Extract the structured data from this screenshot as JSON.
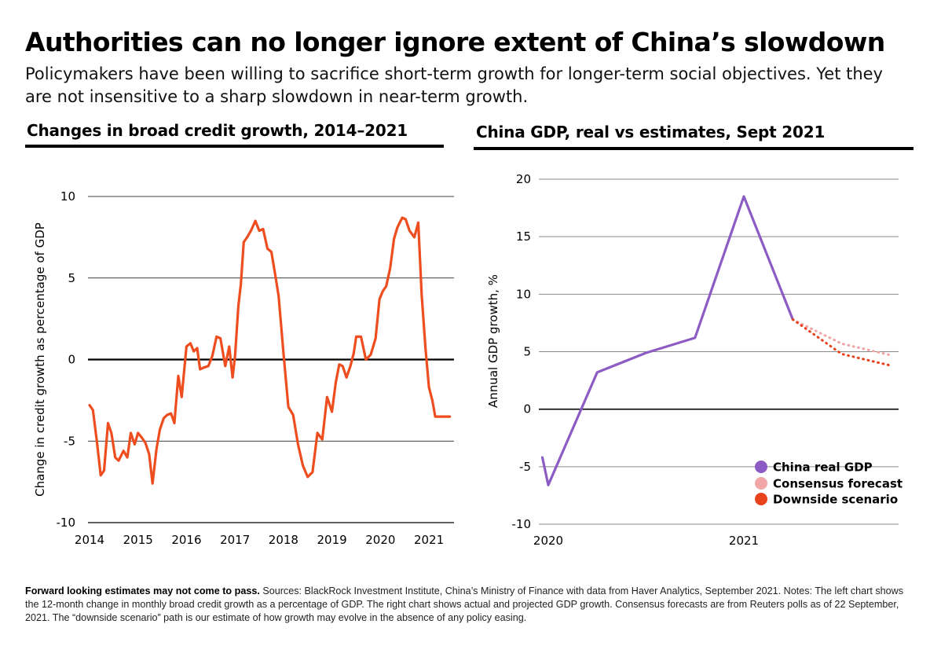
{
  "title": "Authorities can no longer ignore extent of China’s slowdown",
  "subtitle": "Policymakers have been willing to sacrifice short-term growth for longer-term social objectives. Yet they are not insensitive to a sharp slowdown in near-term growth.",
  "left_panel_title": "Changes in broad credit growth, 2014–2021",
  "right_panel_title": "China GDP, real vs estimates, Sept 2021",
  "footer": {
    "lead": "Forward looking estimates may not come to pass.",
    "text": " Sources: BlackRock Investment Institute, China’s Ministry of Finance with data from Haver Analytics, September 2021. Notes: The left chart shows the 12-month change in monthly broad credit growth as a percentage of GDP. The right chart shows actual and projected GDP growth. Consensus forecasts are from Reuters polls as of 22 September, 2021. The “downside scenario” path is our estimate of how growth may evolve in the absence of any policy easing."
  },
  "chart_data": [
    {
      "type": "line",
      "title": "Changes in broad credit growth, 2014–2021",
      "ylabel": "Change in credit growth as percentage of GDP",
      "xlabel": "",
      "xlim": [
        2014,
        2021.55
      ],
      "ylim": [
        -10,
        10
      ],
      "yticks": [
        -10,
        -5,
        0,
        5,
        10
      ],
      "xticks": [
        "2014",
        "2015",
        "2016",
        "2017",
        "2018",
        "2019",
        "2020",
        "2021"
      ],
      "grid": true,
      "color": "#ee4d1f",
      "series": [
        {
          "x": [
            2014.0,
            2014.07,
            2014.15,
            2014.23,
            2014.3,
            2014.38,
            2014.45,
            2014.53,
            2014.6,
            2014.7,
            2014.78,
            2014.85,
            2014.93,
            2015.0,
            2015.08,
            2015.15,
            2015.23,
            2015.3,
            2015.38,
            2015.45,
            2015.53,
            2015.6,
            2015.68,
            2015.75,
            2015.83,
            2015.9,
            2016.0,
            2016.08,
            2016.15,
            2016.22,
            2016.28,
            2016.35,
            2016.45,
            2016.53,
            2016.62,
            2016.7,
            2016.8,
            2016.88,
            2016.95,
            2017.0,
            2017.07,
            2017.12,
            2017.18,
            2017.25,
            2017.33,
            2017.42,
            2017.5,
            2017.58,
            2017.67,
            2017.75,
            2017.83,
            2017.9,
            2018.0,
            2018.1,
            2018.2,
            2018.3,
            2018.4,
            2018.5,
            2018.6,
            2018.7,
            2018.8,
            2018.9,
            2019.0,
            2019.08,
            2019.15,
            2019.22,
            2019.3,
            2019.38,
            2019.45,
            2019.5,
            2019.6,
            2019.7,
            2019.8,
            2019.9,
            2019.98,
            2020.05,
            2020.12,
            2020.2,
            2020.28,
            2020.35,
            2020.45,
            2020.52,
            2020.6,
            2020.7,
            2020.78,
            2020.85,
            2020.93,
            2021.0,
            2021.07,
            2021.13,
            2021.2,
            2021.28,
            2021.35,
            2021.43,
            2021.5
          ],
          "y": [
            -2.8,
            -3.1,
            -5.0,
            -7.1,
            -6.8,
            -3.9,
            -4.5,
            -6.0,
            -6.2,
            -5.6,
            -6.0,
            -4.5,
            -5.2,
            -4.5,
            -4.8,
            -5.1,
            -5.8,
            -7.6,
            -5.5,
            -4.3,
            -3.6,
            -3.4,
            -3.3,
            -3.9,
            -1.0,
            -2.3,
            0.8,
            1.0,
            0.5,
            0.7,
            -0.6,
            -0.5,
            -0.4,
            0.2,
            1.4,
            1.3,
            -0.4,
            0.8,
            -1.1,
            0.2,
            3.3,
            4.6,
            7.2,
            7.5,
            7.9,
            8.5,
            7.9,
            8.0,
            6.8,
            6.6,
            5.2,
            3.9,
            0.4,
            -2.9,
            -3.4,
            -5.2,
            -6.5,
            -7.2,
            -6.9,
            -4.5,
            -4.9,
            -2.3,
            -3.2,
            -1.4,
            -0.3,
            -0.4,
            -1.1,
            -0.4,
            0.4,
            1.4,
            1.4,
            0.0,
            0.3,
            1.3,
            3.7,
            4.2,
            4.5,
            5.6,
            7.4,
            8.1,
            8.7,
            8.6,
            7.9,
            7.5,
            8.4,
            4.0,
            0.7,
            -1.7,
            -2.5,
            -3.5,
            -3.5,
            -3.5,
            -3.5,
            -3.5,
            -3.5
          ]
        }
      ]
    },
    {
      "type": "line",
      "title": "China GDP, real vs estimates, Sept 2021",
      "ylabel": "Annual GDP growth, %",
      "xlabel": "",
      "xlim": [
        2020,
        2021.8
      ],
      "ylim": [
        -10,
        20
      ],
      "yticks": [
        -10,
        -5,
        0,
        5,
        10,
        15,
        20
      ],
      "xticks": [
        "2020",
        "2021"
      ],
      "grid": true,
      "legend": "bottom-right",
      "series": [
        {
          "name": "China real GDP",
          "color": "#8c5cc4",
          "style": "solid",
          "x": [
            2019.97,
            2020.0,
            2020.25,
            2020.5,
            2020.75,
            2021.0,
            2021.25
          ],
          "y": [
            -4.2,
            -6.6,
            3.2,
            4.9,
            6.2,
            18.5,
            7.8
          ]
        },
        {
          "name": "Consensus forecast",
          "color": "#f0a6a6",
          "style": "dotted",
          "x": [
            2021.25,
            2021.5,
            2021.75
          ],
          "y": [
            7.8,
            5.7,
            4.7
          ]
        },
        {
          "name": "Downside scenario",
          "color": "#e8431d",
          "style": "dotted",
          "x": [
            2021.25,
            2021.5,
            2021.75
          ],
          "y": [
            7.8,
            4.8,
            3.8
          ]
        }
      ]
    }
  ]
}
